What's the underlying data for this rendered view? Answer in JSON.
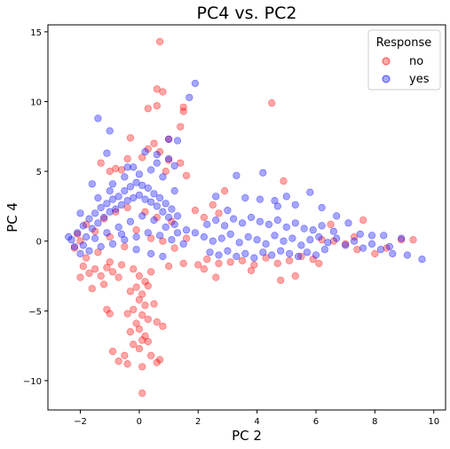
{
  "chart_data": {
    "type": "scatter",
    "title": "PC4 vs. PC2",
    "xlabel": "PC 2",
    "ylabel": "PC 4",
    "xlim": [
      -3.1,
      10.4
    ],
    "ylim": [
      -12.1,
      15.5
    ],
    "xticks": [
      -2,
      0,
      2,
      4,
      6,
      8,
      10
    ],
    "yticks": [
      -10,
      -5,
      0,
      5,
      10,
      15
    ],
    "xtick_labels": [
      "−2",
      "0",
      "2",
      "4",
      "6",
      "8",
      "10"
    ],
    "ytick_labels": [
      "−10",
      "−5",
      "0",
      "5",
      "10",
      "15"
    ],
    "grid": false,
    "legend": {
      "title": "Response",
      "placement": "top-right"
    },
    "marker_alpha": 0.35,
    "series": [
      {
        "name": "no",
        "color": "#ff0000",
        "points": [
          [
            -2.1,
            0.5
          ],
          [
            -1.9,
            -1.8
          ],
          [
            -1.7,
            -2.3
          ],
          [
            -1.5,
            -2.0
          ],
          [
            -1.3,
            -2.5
          ],
          [
            -1.1,
            -1.9
          ],
          [
            -0.9,
            -2.2
          ],
          [
            -0.7,
            -2.6
          ],
          [
            -1.6,
            -3.4
          ],
          [
            -1.2,
            -3.1
          ],
          [
            -1.8,
            -1.2
          ],
          [
            -1.4,
            -0.8
          ],
          [
            -1.0,
            -1.5
          ],
          [
            -0.6,
            -1.7
          ],
          [
            -2.2,
            -0.5
          ],
          [
            -2.0,
            -2.6
          ],
          [
            -0.2,
            -2.0
          ],
          [
            0.0,
            -2.5
          ],
          [
            0.2,
            -2.9
          ],
          [
            0.4,
            -2.2
          ],
          [
            -0.1,
            -3.3
          ],
          [
            0.1,
            -3.8
          ],
          [
            0.3,
            -3.2
          ],
          [
            -0.3,
            -3.6
          ],
          [
            0.0,
            -4.2
          ],
          [
            0.2,
            -4.6
          ],
          [
            -0.2,
            -4.9
          ],
          [
            0.1,
            -5.3
          ],
          [
            0.3,
            -5.6
          ],
          [
            -0.1,
            -5.9
          ],
          [
            0.0,
            -6.3
          ],
          [
            0.2,
            -6.8
          ],
          [
            -0.3,
            -6.5
          ],
          [
            0.1,
            -7.1
          ],
          [
            -0.2,
            -7.4
          ],
          [
            0.0,
            -7.7
          ],
          [
            0.3,
            -7.2
          ],
          [
            -0.4,
            -5.2
          ],
          [
            0.5,
            -4.5
          ],
          [
            0.6,
            -5.8
          ],
          [
            -0.5,
            -8.2
          ],
          [
            -0.7,
            -8.6
          ],
          [
            0.7,
            -8.5
          ],
          [
            0.6,
            -8.7
          ],
          [
            -0.9,
            -7.9
          ],
          [
            -1.0,
            -5.2
          ],
          [
            -1.1,
            -4.9
          ],
          [
            0.8,
            -6.1
          ],
          [
            0.1,
            -9.0
          ],
          [
            0.1,
            -10.9
          ],
          [
            -0.4,
            -8.8
          ],
          [
            0.4,
            -8.2
          ],
          [
            1.0,
            -1.8
          ],
          [
            1.5,
            -1.6
          ],
          [
            2.0,
            -1.7
          ],
          [
            2.3,
            -1.3
          ],
          [
            2.7,
            -1.6
          ],
          [
            3.1,
            -1.5
          ],
          [
            3.5,
            -1.4
          ],
          [
            3.9,
            -1.7
          ],
          [
            4.3,
            -1.2
          ],
          [
            4.7,
            -1.6
          ],
          [
            5.1,
            -1.4
          ],
          [
            5.5,
            -1.1
          ],
          [
            5.9,
            -1.3
          ],
          [
            2.6,
            -2.6
          ],
          [
            3.8,
            -2.1
          ],
          [
            4.8,
            -2.8
          ],
          [
            5.3,
            -2.5
          ],
          [
            6.1,
            -1.6
          ],
          [
            2.2,
            -2.0
          ],
          [
            -1.3,
            5.6
          ],
          [
            -1.0,
            5.0
          ],
          [
            -0.6,
            5.1
          ],
          [
            -0.4,
            5.9
          ],
          [
            -0.3,
            7.4
          ],
          [
            0.1,
            6.0
          ],
          [
            0.3,
            6.6
          ],
          [
            0.5,
            7.0
          ],
          [
            0.7,
            6.4
          ],
          [
            1.0,
            7.3
          ],
          [
            1.4,
            8.2
          ],
          [
            1.5,
            9.6
          ],
          [
            1.5,
            9.3
          ],
          [
            0.6,
            10.9
          ],
          [
            0.8,
            10.7
          ],
          [
            0.6,
            9.7
          ],
          [
            0.3,
            9.5
          ],
          [
            0.7,
            14.3
          ],
          [
            1.0,
            5.8
          ],
          [
            1.4,
            5.6
          ],
          [
            1.6,
            4.7
          ],
          [
            0.9,
            5.0
          ],
          [
            -0.8,
            5.2
          ],
          [
            2.5,
            2.6
          ],
          [
            2.9,
            3.6
          ],
          [
            4.5,
            9.9
          ],
          [
            4.9,
            4.3
          ],
          [
            1.9,
            2.2
          ],
          [
            2.2,
            1.7
          ],
          [
            2.7,
            2.0
          ],
          [
            6.2,
            0.1
          ],
          [
            6.6,
            0.0
          ],
          [
            7.0,
            -0.2
          ],
          [
            7.4,
            -0.6
          ],
          [
            7.6,
            1.5
          ],
          [
            8.0,
            -0.9
          ],
          [
            8.4,
            -0.5
          ],
          [
            8.9,
            0.1
          ],
          [
            9.3,
            0.1
          ],
          [
            7.3,
            0.3
          ],
          [
            6.5,
            1.2
          ],
          [
            -2.0,
            0.0
          ],
          [
            -1.5,
            0.7
          ],
          [
            -1.0,
            0.3
          ],
          [
            -0.5,
            -0.4
          ],
          [
            0.4,
            0.2
          ],
          [
            0.8,
            0.0
          ],
          [
            1.2,
            -0.5
          ],
          [
            1.6,
            0.2
          ],
          [
            -1.8,
            1.2
          ],
          [
            -1.2,
            1.6
          ],
          [
            -0.8,
            2.1
          ],
          [
            -0.4,
            2.4
          ],
          [
            0.2,
            2.1
          ],
          [
            0.6,
            1.7
          ],
          [
            1.1,
            1.4
          ],
          [
            -0.1,
            0.8
          ]
        ]
      },
      {
        "name": "yes",
        "color": "#0000ff",
        "points": [
          [
            -2.3,
            0.1
          ],
          [
            -2.1,
            0.6
          ],
          [
            -1.9,
            1.1
          ],
          [
            -1.7,
            1.6
          ],
          [
            -1.5,
            2.0
          ],
          [
            -1.3,
            2.4
          ],
          [
            -1.1,
            2.7
          ],
          [
            -0.9,
            3.0
          ],
          [
            -0.7,
            3.2
          ],
          [
            -0.5,
            3.6
          ],
          [
            -0.3,
            3.9
          ],
          [
            -0.1,
            4.2
          ],
          [
            0.1,
            4.0
          ],
          [
            0.3,
            3.8
          ],
          [
            0.5,
            3.4
          ],
          [
            0.7,
            3.1
          ],
          [
            0.9,
            2.7
          ],
          [
            1.1,
            2.3
          ],
          [
            1.3,
            1.8
          ],
          [
            -2.2,
            -0.4
          ],
          [
            -2.0,
            -0.9
          ],
          [
            -1.8,
            0.3
          ],
          [
            -1.6,
            0.9
          ],
          [
            -1.4,
            1.3
          ],
          [
            -1.2,
            1.7
          ],
          [
            -1.0,
            2.1
          ],
          [
            -0.8,
            2.3
          ],
          [
            -0.6,
            2.6
          ],
          [
            -0.4,
            2.9
          ],
          [
            -0.2,
            3.1
          ],
          [
            0.0,
            3.3
          ],
          [
            0.2,
            3.0
          ],
          [
            0.4,
            2.8
          ],
          [
            0.6,
            2.5
          ],
          [
            0.8,
            2.1
          ],
          [
            1.0,
            1.7
          ],
          [
            1.2,
            1.2
          ],
          [
            -1.9,
            -0.3
          ],
          [
            -1.5,
            0.2
          ],
          [
            -1.1,
            0.6
          ],
          [
            -0.7,
            1.0
          ],
          [
            -0.3,
            1.4
          ],
          [
            0.1,
            1.8
          ],
          [
            0.5,
            1.5
          ],
          [
            0.9,
            1.0
          ],
          [
            1.3,
            0.6
          ],
          [
            -1.7,
            -0.7
          ],
          [
            -1.3,
            -0.4
          ],
          [
            -0.9,
            -0.2
          ],
          [
            -0.5,
            0.1
          ],
          [
            -0.1,
            0.3
          ],
          [
            0.3,
            0.6
          ],
          [
            0.7,
            0.4
          ],
          [
            1.1,
            0.1
          ],
          [
            1.5,
            -0.2
          ],
          [
            -2.4,
            0.3
          ],
          [
            -2.0,
            2.0
          ],
          [
            -1.4,
            3.1
          ],
          [
            -0.9,
            4.1
          ],
          [
            -0.5,
            4.6
          ],
          [
            0.0,
            4.8
          ],
          [
            0.4,
            5.1
          ],
          [
            0.8,
            4.6
          ],
          [
            1.2,
            3.6
          ],
          [
            -1.6,
            4.1
          ],
          [
            -1.0,
            3.6
          ],
          [
            -0.2,
            5.3
          ],
          [
            0.6,
            5.6
          ],
          [
            -0.6,
            0.5
          ],
          [
            -0.1,
            -0.6
          ],
          [
            0.4,
            -0.9
          ],
          [
            0.8,
            -1.1
          ],
          [
            -1.4,
            8.8
          ],
          [
            -1.0,
            7.9
          ],
          [
            -1.1,
            6.3
          ],
          [
            0.2,
            6.4
          ],
          [
            0.6,
            6.2
          ],
          [
            1.0,
            5.9
          ],
          [
            1.2,
            5.4
          ],
          [
            1.3,
            7.2
          ],
          [
            1.7,
            10.3
          ],
          [
            1.9,
            11.3
          ],
          [
            1.0,
            7.3
          ],
          [
            -0.4,
            5.3
          ],
          [
            1.6,
            0.8
          ],
          [
            1.9,
            0.6
          ],
          [
            2.2,
            0.3
          ],
          [
            2.5,
            0.0
          ],
          [
            2.8,
            0.2
          ],
          [
            3.1,
            0.5
          ],
          [
            3.4,
            -0.1
          ],
          [
            3.7,
            0.3
          ],
          [
            4.0,
            0.1
          ],
          [
            4.3,
            -0.2
          ],
          [
            4.6,
            0.4
          ],
          [
            4.9,
            0.0
          ],
          [
            5.2,
            0.2
          ],
          [
            5.5,
            -0.3
          ],
          [
            5.8,
            0.1
          ],
          [
            6.1,
            0.3
          ],
          [
            6.4,
            -0.1
          ],
          [
            6.7,
            0.2
          ],
          [
            7.0,
            -0.3
          ],
          [
            7.3,
            0.0
          ],
          [
            7.6,
            -0.5
          ],
          [
            7.9,
            -0.2
          ],
          [
            8.2,
            -0.6
          ],
          [
            8.5,
            -0.4
          ],
          [
            2.3,
            1.2
          ],
          [
            2.6,
            1.5
          ],
          [
            2.9,
            1.1
          ],
          [
            3.2,
            1.6
          ],
          [
            3.5,
            1.3
          ],
          [
            3.8,
            1.7
          ],
          [
            4.1,
            1.4
          ],
          [
            4.4,
            1.2
          ],
          [
            4.7,
            1.5
          ],
          [
            5.0,
            1.0
          ],
          [
            5.3,
            1.3
          ],
          [
            5.6,
            0.9
          ],
          [
            5.9,
            0.8
          ],
          [
            6.2,
            1.1
          ],
          [
            6.6,
            0.7
          ],
          [
            2.4,
            -0.8
          ],
          [
            2.7,
            -1.0
          ],
          [
            3.0,
            -0.7
          ],
          [
            3.3,
            -1.1
          ],
          [
            3.6,
            -0.9
          ],
          [
            3.9,
            -1.2
          ],
          [
            4.2,
            -0.8
          ],
          [
            4.5,
            -1.0
          ],
          [
            4.8,
            -0.7
          ],
          [
            5.1,
            -0.9
          ],
          [
            5.4,
            -1.1
          ],
          [
            5.7,
            -0.8
          ],
          [
            6.0,
            -1.0
          ],
          [
            6.3,
            -0.6
          ],
          [
            2.6,
            3.2
          ],
          [
            3.0,
            2.2
          ],
          [
            3.3,
            4.7
          ],
          [
            3.6,
            3.1
          ],
          [
            4.1,
            3.0
          ],
          [
            4.6,
            2.9
          ],
          [
            5.0,
            3.2
          ],
          [
            5.3,
            2.6
          ],
          [
            5.8,
            3.5
          ],
          [
            6.2,
            2.4
          ],
          [
            4.2,
            4.9
          ],
          [
            4.7,
            2.5
          ],
          [
            6.7,
            1.8
          ],
          [
            7.1,
            1.3
          ],
          [
            7.9,
            0.4
          ],
          [
            8.6,
            -0.9
          ],
          [
            8.9,
            0.2
          ],
          [
            9.1,
            -1.0
          ],
          [
            9.6,
            -1.3
          ],
          [
            8.3,
            0.4
          ],
          [
            7.5,
            0.5
          ]
        ]
      }
    ]
  }
}
